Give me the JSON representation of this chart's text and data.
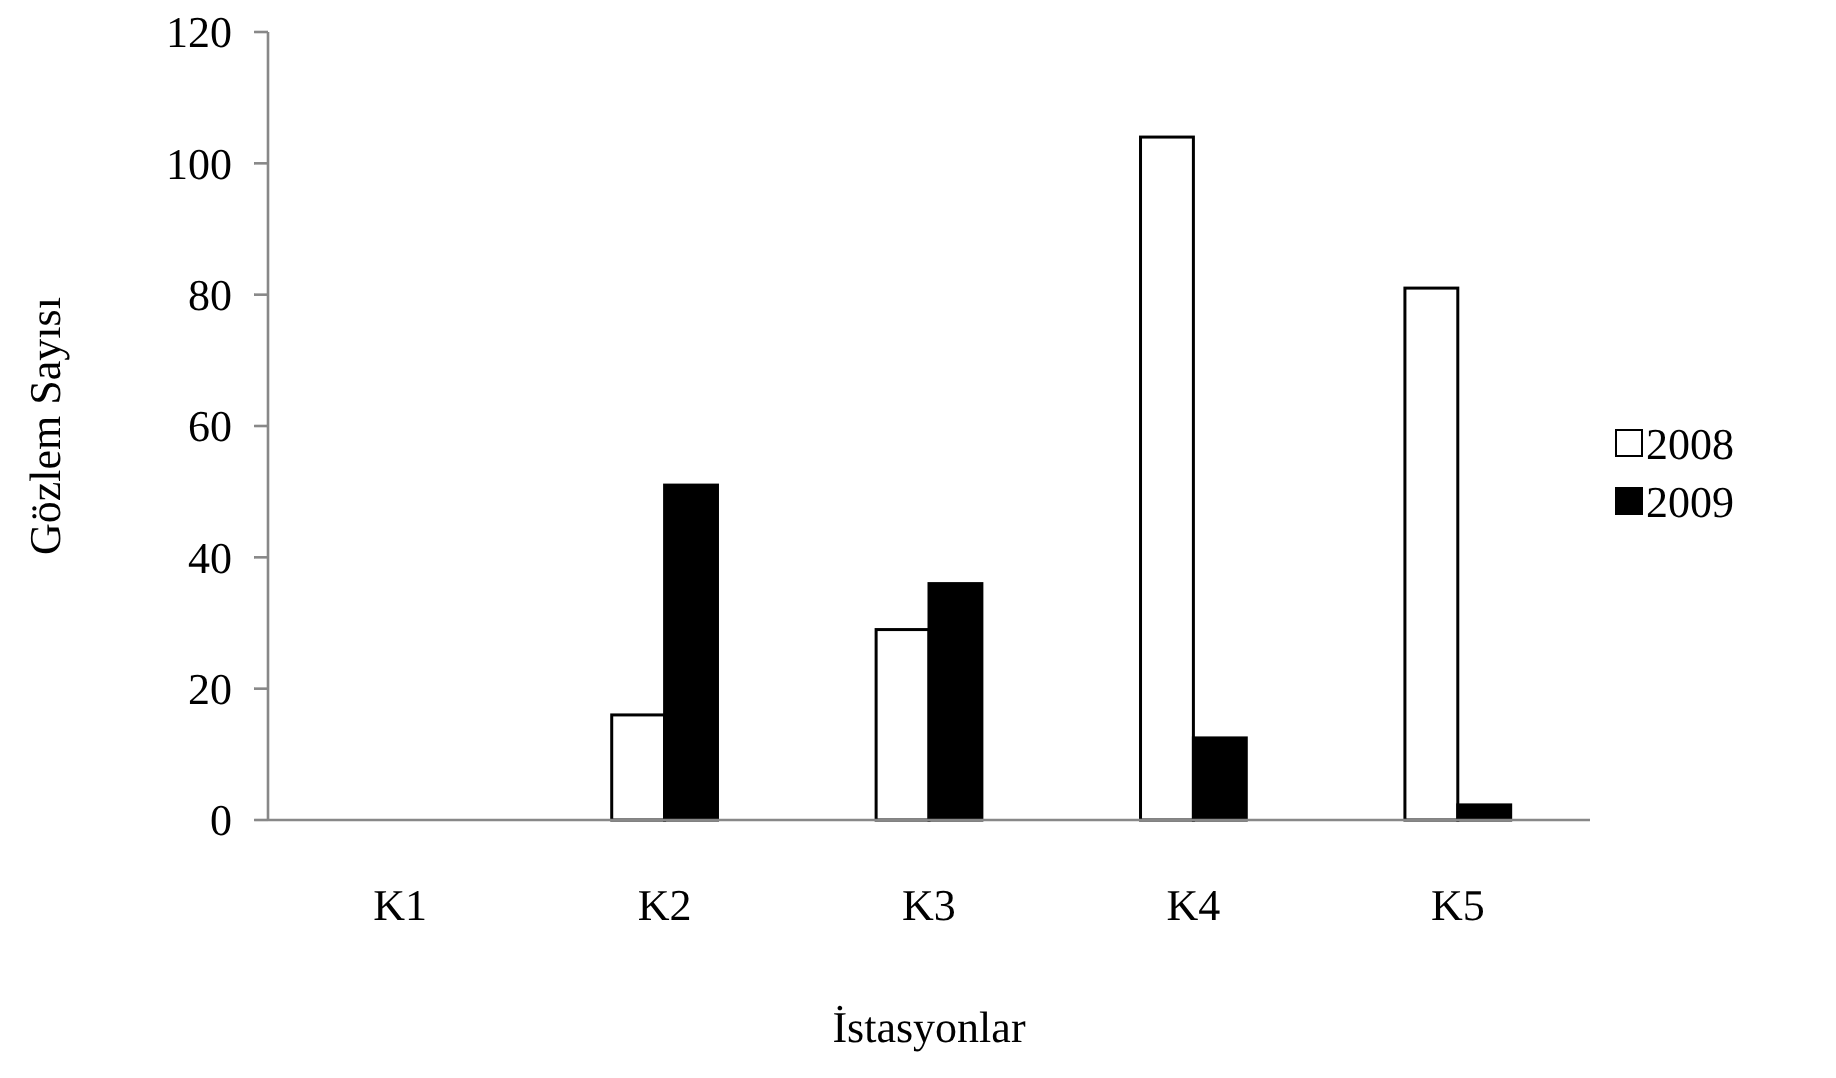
{
  "chart_data": {
    "type": "bar",
    "xlabel": "İstasyonlar",
    "ylabel": "Gözlem Sayısı",
    "categories": [
      "K1",
      "K2",
      "K3",
      "K4",
      "K5"
    ],
    "series": [
      {
        "name": "2008",
        "color": "#ffffff",
        "values": [
          0,
          16,
          29,
          104,
          81
        ]
      },
      {
        "name": "2009",
        "color": "#000000",
        "values": [
          0,
          51,
          36,
          12.5,
          2.3
        ]
      }
    ],
    "ylim": [
      0,
      120
    ],
    "yticks": [
      0,
      20,
      40,
      60,
      80,
      100,
      120
    ],
    "grid": false,
    "legend": "right"
  }
}
